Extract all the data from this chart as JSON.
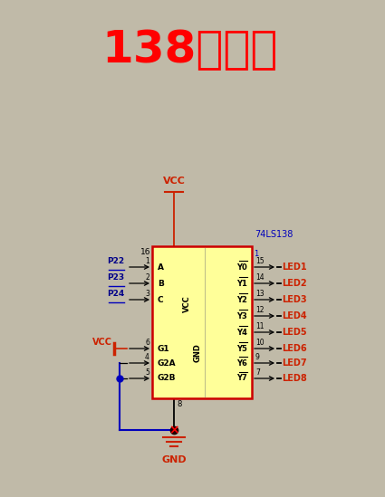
{
  "title": "138译码器",
  "title_color": "#FF0000",
  "bg_color": "#C0BAA8",
  "chip_color": "#FFFF99",
  "chip_edge_color": "#CC0000",
  "chip_label": "74LS138",
  "dark_red": "#8B1A00",
  "dark_red2": "#CC2200",
  "blue": "#0000BB",
  "dark_blue": "#000088",
  "black": "#000000",
  "left_pins": [
    {
      "label": "A",
      "pin": "1",
      "port": "P22",
      "iy": 295
    },
    {
      "label": "B",
      "pin": "2",
      "port": "P23",
      "iy": 313
    },
    {
      "label": "C",
      "pin": "3",
      "port": "P24",
      "iy": 331
    },
    {
      "label": "G1",
      "pin": "6",
      "port": "VCC",
      "iy": 385
    },
    {
      "label": "G2A",
      "pin": "4",
      "port": "",
      "iy": 401
    },
    {
      "label": "G2B",
      "pin": "5",
      "port": "",
      "iy": 418
    }
  ],
  "right_pins": [
    {
      "label": "Y0",
      "pin": "15",
      "led": "LED1",
      "iy": 295
    },
    {
      "label": "Y1",
      "pin": "14",
      "led": "LED2",
      "iy": 313
    },
    {
      "label": "Y2",
      "pin": "13",
      "led": "LED3",
      "iy": 331
    },
    {
      "label": "Y3",
      "pin": "12",
      "led": "LED4",
      "iy": 349
    },
    {
      "label": "Y4",
      "pin": "11",
      "led": "LED5",
      "iy": 367
    },
    {
      "label": "Y5",
      "pin": "10",
      "led": "LED6",
      "iy": 385
    },
    {
      "label": "Y6",
      "pin": "9",
      "led": "LED7",
      "iy": 401
    },
    {
      "label": "Y7",
      "pin": "7",
      "led": "LED8",
      "iy": 418
    }
  ]
}
